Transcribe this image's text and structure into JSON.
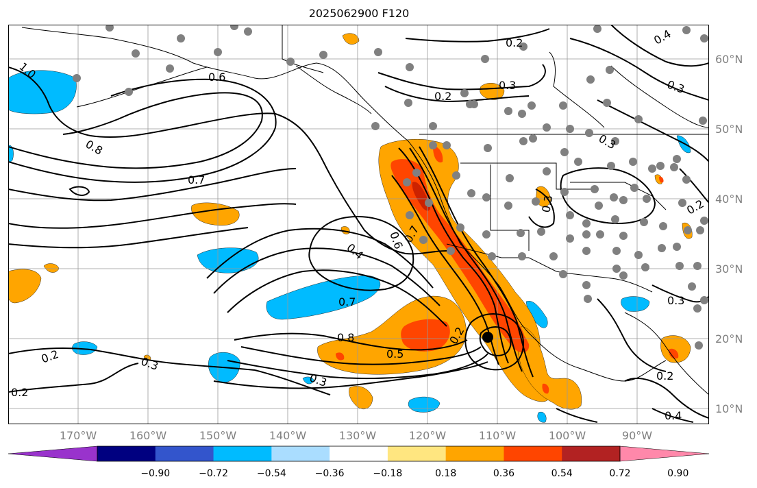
{
  "title": "2025062900 F120",
  "lat_labels": [
    "60°N",
    "50°N",
    "40°N",
    "30°N",
    "20°N",
    "10°N"
  ],
  "lon_labels": [
    "170°W",
    "160°W",
    "150°W",
    "140°W",
    "130°W",
    "120°W",
    "110°W",
    "100°W",
    "90°W"
  ],
  "contour_labels": [
    "1.0",
    "0.6",
    "0.8",
    "0.7",
    "0.2",
    "0.3",
    "0.4",
    "0.7",
    "0.8",
    "0.5",
    "0.2",
    "0.3",
    "0.2",
    "0.3",
    "0.4",
    "0.3",
    "0.3",
    "0.2",
    "0.6",
    "0.7",
    "0.2",
    "0.2",
    "0.3",
    "0.3",
    "0.2",
    "0.4"
  ],
  "colorbar": {
    "ticks": [
      "−0.90",
      "−0.72",
      "−0.54",
      "−0.36",
      "−0.18",
      "0.18",
      "0.36",
      "0.54",
      "0.72",
      "0.90"
    ],
    "colors": [
      "#9933cc",
      "#000080",
      "#3355cc",
      "#00bbff",
      "#aaddff",
      "#ffffff",
      "#ffe680",
      "#ffa500",
      "#ff4500",
      "#b22222",
      "#ff88aa"
    ]
  },
  "colors": {
    "positive_light": "#ffa500",
    "positive_strong": "#ff4500",
    "positive_deep": "#cc2200",
    "negative": "#00bbff",
    "station_dot": "#808080",
    "contour": "#000000",
    "grid": "#999999"
  }
}
